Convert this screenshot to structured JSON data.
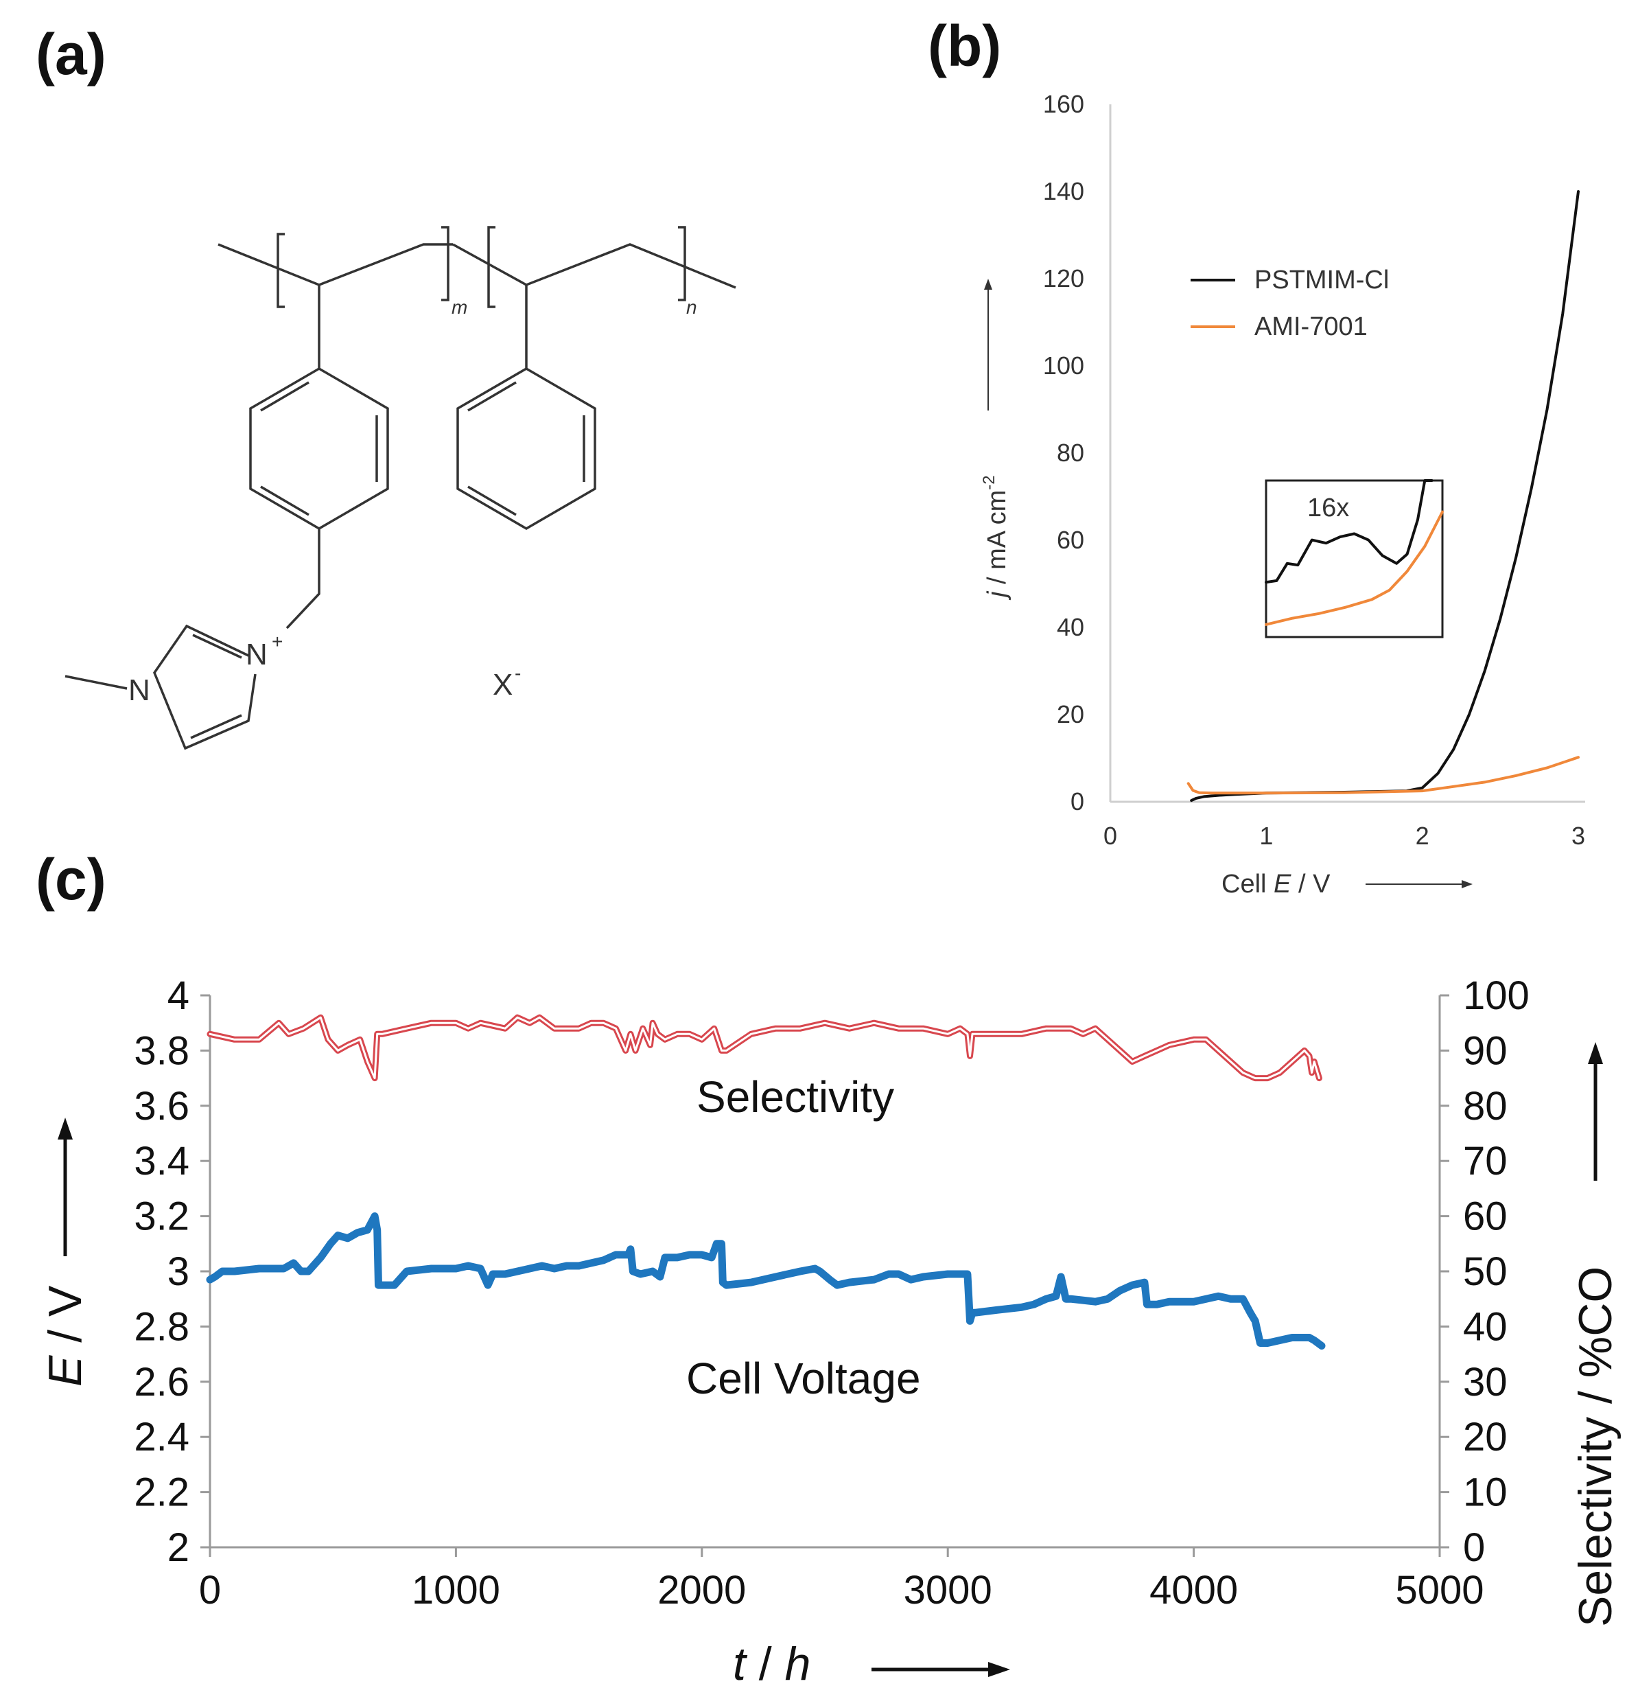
{
  "panels": {
    "a": {
      "label": "(a)"
    },
    "b": {
      "label": "(b)"
    },
    "c": {
      "label": "(c)"
    }
  },
  "structure": {
    "subscript_m": "m",
    "subscript_n": "n",
    "nitrogen_1": "N",
    "nitrogen_2": "N",
    "charge": "+",
    "anion": "X",
    "anion_charge": "-"
  },
  "chart_data": [
    {
      "id": "b",
      "type": "line",
      "xlabel_prefix": "Cell ",
      "xlabel_var": "E",
      "xlabel_suffix": " / V",
      "ylabel_var": "j",
      "ylabel_suffix": " / mA cm",
      "ylabel_exp": "-2",
      "xlim": [
        0,
        3
      ],
      "ylim": [
        0,
        160
      ],
      "xticks": [
        "0",
        "1",
        "2",
        "3"
      ],
      "yticks": [
        "0",
        "20",
        "40",
        "60",
        "80",
        "100",
        "120",
        "140",
        "160"
      ],
      "legend": [
        {
          "name": "PSTMIM-Cl",
          "color": "#111111"
        },
        {
          "name": "AMI-7001",
          "color": "#f0883a"
        }
      ],
      "series": [
        {
          "name": "PSTMIM-Cl",
          "color": "#111111",
          "x": [
            0.52,
            0.55,
            0.6,
            0.7,
            0.8,
            1.0,
            1.5,
            1.9,
            2.0,
            2.1,
            2.2,
            2.3,
            2.4,
            2.5,
            2.6,
            2.7,
            2.8,
            2.9,
            3.0
          ],
          "y": [
            0.3,
            0.8,
            1.2,
            1.5,
            1.7,
            2.0,
            2.2,
            2.5,
            3.2,
            6.5,
            12,
            20,
            30,
            42,
            56,
            72,
            90,
            112,
            140
          ]
        },
        {
          "name": "AMI-7001",
          "color": "#f0883a",
          "x": [
            0.5,
            0.53,
            0.57,
            0.65,
            0.8,
            1.0,
            1.5,
            2.0,
            2.2,
            2.4,
            2.6,
            2.8,
            3.0
          ],
          "y": [
            4.2,
            2.6,
            2.1,
            2.0,
            2.0,
            2.0,
            2.1,
            2.5,
            3.5,
            4.5,
            6.0,
            7.8,
            10.2
          ]
        }
      ],
      "inset": {
        "label": "16x",
        "series": [
          {
            "name": "PSTMIM-Cl",
            "color": "#111111",
            "x": [
              0.0,
              0.06,
              0.12,
              0.18,
              0.26,
              0.34,
              0.42,
              0.5,
              0.58,
              0.66,
              0.74,
              0.8,
              0.86,
              0.9,
              0.94
            ],
            "y": [
              0.35,
              0.36,
              0.47,
              0.46,
              0.62,
              0.6,
              0.64,
              0.66,
              0.62,
              0.52,
              0.47,
              0.53,
              0.75,
              1.0,
              1.0
            ]
          },
          {
            "name": "AMI-7001",
            "color": "#f0883a",
            "x": [
              0.0,
              0.15,
              0.3,
              0.45,
              0.6,
              0.7,
              0.8,
              0.9,
              1.0
            ],
            "y": [
              0.08,
              0.12,
              0.15,
              0.19,
              0.24,
              0.3,
              0.42,
              0.58,
              0.8
            ]
          }
        ]
      }
    },
    {
      "id": "c",
      "type": "line",
      "xlabel_var": "t",
      "xlabel_suffix": " / ",
      "xlabel_unit": "h",
      "ylabel_var": "E",
      "ylabel_suffix": " / V",
      "y2label": "Selectivity / %CO",
      "xlim": [
        0,
        5000
      ],
      "ylim": [
        2,
        4
      ],
      "y2lim": [
        0,
        100
      ],
      "xticks": [
        "0",
        "1000",
        "2000",
        "3000",
        "4000",
        "5000"
      ],
      "yticks": [
        "2",
        "2.2",
        "2.4",
        "2.6",
        "2.8",
        "3",
        "3.2",
        "3.4",
        "3.6",
        "3.8",
        "4"
      ],
      "y2ticks": [
        "0",
        "10",
        "20",
        "30",
        "40",
        "50",
        "60",
        "70",
        "80",
        "90",
        "100"
      ],
      "annotations": {
        "selectivity": "Selectivity",
        "voltage": "Cell Voltage"
      },
      "series": [
        {
          "name": "Selectivity",
          "axis": "y2",
          "color": "#d8474e",
          "x": [
            0,
            100,
            200,
            280,
            320,
            380,
            450,
            480,
            520,
            560,
            610,
            640,
            670,
            680,
            700,
            800,
            900,
            1000,
            1050,
            1100,
            1200,
            1250,
            1300,
            1340,
            1400,
            1500,
            1550,
            1600,
            1650,
            1690,
            1710,
            1730,
            1760,
            1790,
            1800,
            1820,
            1850,
            1900,
            1950,
            2000,
            2050,
            2080,
            2100,
            2200,
            2300,
            2400,
            2500,
            2600,
            2700,
            2800,
            2900,
            3000,
            3050,
            3080,
            3090,
            3100,
            3110,
            3200,
            3300,
            3400,
            3500,
            3550,
            3600,
            3650,
            3700,
            3750,
            3800,
            3900,
            4000,
            4050,
            4100,
            4200,
            4250,
            4300,
            4350,
            4400,
            4450,
            4470,
            4480,
            4490,
            4510
          ],
          "y": [
            93,
            92,
            92,
            95,
            93,
            94,
            96,
            92,
            90,
            91,
            92,
            88,
            85,
            93,
            93,
            94,
            95,
            95,
            94,
            95,
            94,
            96,
            95,
            96,
            94,
            94,
            95,
            95,
            94,
            90,
            93,
            90,
            94,
            91,
            95,
            93,
            92,
            93,
            93,
            92,
            94,
            90,
            90,
            93,
            94,
            94,
            95,
            94,
            95,
            94,
            94,
            93,
            94,
            93,
            89,
            93,
            93,
            93,
            93,
            94,
            94,
            93,
            94,
            92,
            90,
            88,
            89,
            91,
            92,
            92,
            90,
            86,
            85,
            85,
            86,
            88,
            90,
            89,
            86,
            88,
            85
          ]
        },
        {
          "name": "Cell Voltage",
          "axis": "y",
          "color": "#1f77bf",
          "x": [
            0,
            20,
            50,
            100,
            200,
            300,
            340,
            370,
            400,
            450,
            490,
            520,
            560,
            600,
            640,
            670,
            680,
            685,
            700,
            750,
            800,
            900,
            1000,
            1050,
            1100,
            1130,
            1150,
            1200,
            1300,
            1350,
            1400,
            1450,
            1500,
            1600,
            1650,
            1700,
            1710,
            1720,
            1750,
            1800,
            1830,
            1850,
            1900,
            1950,
            2000,
            2040,
            2060,
            2080,
            2085,
            2100,
            2200,
            2300,
            2400,
            2460,
            2480,
            2520,
            2550,
            2600,
            2700,
            2760,
            2800,
            2850,
            2900,
            3000,
            3080,
            3090,
            3100,
            3110,
            3200,
            3300,
            3350,
            3400,
            3440,
            3460,
            3480,
            3500,
            3600,
            3650,
            3700,
            3750,
            3800,
            3810,
            3850,
            3900,
            4000,
            4050,
            4100,
            4150,
            4200,
            4230,
            4250,
            4270,
            4300,
            4350,
            4400,
            4450,
            4470,
            4490,
            4520
          ],
          "y": [
            2.97,
            2.98,
            3.0,
            3.0,
            3.01,
            3.01,
            3.03,
            3.0,
            3.0,
            3.05,
            3.1,
            3.13,
            3.12,
            3.14,
            3.15,
            3.2,
            3.15,
            2.95,
            2.95,
            2.95,
            3.0,
            3.01,
            3.01,
            3.02,
            3.01,
            2.95,
            2.99,
            2.99,
            3.01,
            3.02,
            3.01,
            3.02,
            3.02,
            3.04,
            3.06,
            3.06,
            3.08,
            3.0,
            2.99,
            3.0,
            2.98,
            3.05,
            3.05,
            3.06,
            3.06,
            3.05,
            3.1,
            3.1,
            2.96,
            2.95,
            2.96,
            2.98,
            3.0,
            3.01,
            3.0,
            2.97,
            2.95,
            2.96,
            2.97,
            2.99,
            2.99,
            2.97,
            2.98,
            2.99,
            2.99,
            2.82,
            2.85,
            2.85,
            2.86,
            2.87,
            2.88,
            2.9,
            2.91,
            2.98,
            2.9,
            2.9,
            2.89,
            2.9,
            2.93,
            2.95,
            2.96,
            2.88,
            2.88,
            2.89,
            2.89,
            2.9,
            2.91,
            2.9,
            2.9,
            2.85,
            2.82,
            2.74,
            2.74,
            2.75,
            2.76,
            2.76,
            2.76,
            2.75,
            2.73
          ]
        }
      ]
    }
  ]
}
